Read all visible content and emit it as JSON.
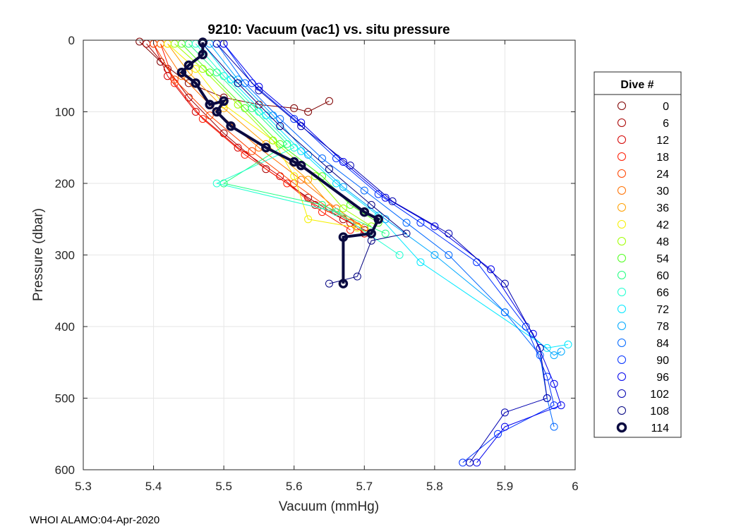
{
  "chart_data": {
    "type": "line",
    "title": "9210: Vacuum (vac1) vs. situ pressure",
    "xlabel": "Vacuum (mmHg)",
    "ylabel": "Pressure (dbar)",
    "xlim": [
      5.3,
      6.0
    ],
    "ylim": [
      0,
      600
    ],
    "y_reversed": true,
    "grid": true,
    "xticks": [
      "5.3",
      "5.4",
      "5.5",
      "5.6",
      "5.7",
      "5.8",
      "5.9",
      "6"
    ],
    "yticks": [
      "0",
      "100",
      "200",
      "300",
      "400",
      "500",
      "600"
    ],
    "legend": {
      "title": "Dive #",
      "placement": "outside-right",
      "entries": [
        "0",
        "6",
        "12",
        "18",
        "24",
        "30",
        "36",
        "42",
        "48",
        "54",
        "60",
        "66",
        "72",
        "78",
        "84",
        "90",
        "96",
        "102",
        "108",
        "114"
      ]
    },
    "series": [
      {
        "name": "0",
        "color": "#7f0000",
        "x": [
          5.38,
          5.41,
          5.45,
          5.5,
          5.55,
          5.6,
          5.62,
          5.65
        ],
        "y": [
          2,
          30,
          60,
          80,
          90,
          95,
          100,
          85
        ]
      },
      {
        "name": "6",
        "color": "#a80000",
        "x": [
          5.39,
          5.42,
          5.45,
          5.5,
          5.56,
          5.62,
          5.67,
          5.7
        ],
        "y": [
          5,
          40,
          80,
          130,
          180,
          220,
          250,
          265
        ]
      },
      {
        "name": "12",
        "color": "#d40000",
        "x": [
          5.4,
          5.42,
          5.46,
          5.52,
          5.58,
          5.63,
          5.68,
          5.7
        ],
        "y": [
          5,
          50,
          100,
          150,
          190,
          230,
          255,
          270
        ]
      },
      {
        "name": "18",
        "color": "#ff1a00",
        "x": [
          5.41,
          5.43,
          5.47,
          5.53,
          5.59,
          5.64,
          5.68
        ],
        "y": [
          5,
          60,
          110,
          160,
          200,
          240,
          265
        ]
      },
      {
        "name": "24",
        "color": "#ff4400",
        "x": [
          5.4,
          5.43,
          5.48,
          5.54,
          5.6,
          5.65,
          5.69
        ],
        "y": [
          5,
          55,
          105,
          155,
          200,
          235,
          260
        ]
      },
      {
        "name": "30",
        "color": "#ff7000",
        "x": [
          5.41,
          5.44,
          5.49,
          5.55,
          5.61,
          5.66,
          5.7
        ],
        "y": [
          5,
          50,
          100,
          150,
          195,
          235,
          262
        ]
      },
      {
        "name": "36",
        "color": "#ffa000",
        "x": [
          5.42,
          5.45,
          5.5,
          5.56,
          5.62,
          5.66,
          5.7
        ],
        "y": [
          5,
          45,
          95,
          145,
          195,
          240,
          262
        ]
      },
      {
        "name": "42",
        "color": "#f5f000",
        "x": [
          5.42,
          5.46,
          5.5,
          5.57,
          5.6,
          5.62,
          5.69
        ],
        "y": [
          5,
          40,
          90,
          140,
          190,
          250,
          262
        ]
      },
      {
        "name": "48",
        "color": "#a0ff00",
        "x": [
          5.43,
          5.47,
          5.52,
          5.57,
          5.63,
          5.67,
          5.71
        ],
        "y": [
          5,
          40,
          90,
          140,
          190,
          235,
          260
        ]
      },
      {
        "name": "54",
        "color": "#50ff20",
        "x": [
          5.44,
          5.48,
          5.53,
          5.58,
          5.64,
          5.68,
          5.72
        ],
        "y": [
          5,
          45,
          95,
          145,
          190,
          230,
          255
        ]
      },
      {
        "name": "60",
        "color": "#20ff80",
        "x": [
          5.45,
          5.49,
          5.54,
          5.59,
          5.5,
          5.64,
          5.73
        ],
        "y": [
          5,
          45,
          95,
          145,
          200,
          230,
          270
        ]
      },
      {
        "name": "66",
        "color": "#20ffd0",
        "x": [
          5.46,
          5.5,
          5.55,
          5.6,
          5.49,
          5.66,
          5.75
        ],
        "y": [
          5,
          50,
          100,
          150,
          200,
          240,
          300
        ]
      },
      {
        "name": "72",
        "color": "#00e8ff",
        "x": [
          5.47,
          5.51,
          5.56,
          5.61,
          5.66,
          5.72,
          5.78,
          5.96,
          5.99
        ],
        "y": [
          5,
          55,
          105,
          155,
          200,
          245,
          310,
          430,
          425
        ]
      },
      {
        "name": "78",
        "color": "#00a8ff",
        "x": [
          5.48,
          5.52,
          5.57,
          5.62,
          5.67,
          5.73,
          5.8,
          5.9,
          5.97,
          5.98
        ],
        "y": [
          5,
          55,
          105,
          160,
          205,
          250,
          300,
          380,
          440,
          435
        ]
      },
      {
        "name": "84",
        "color": "#0068ff",
        "x": [
          5.49,
          5.53,
          5.58,
          5.64,
          5.7,
          5.76,
          5.82,
          5.9,
          5.95,
          5.96,
          5.97
        ],
        "y": [
          5,
          60,
          110,
          165,
          210,
          255,
          300,
          380,
          440,
          500,
          540
        ]
      },
      {
        "name": "90",
        "color": "#0030ff",
        "x": [
          5.5,
          5.54,
          5.6,
          5.66,
          5.72,
          5.78,
          5.86,
          5.93,
          5.96,
          5.97,
          5.89,
          5.84
        ],
        "y": [
          5,
          60,
          110,
          165,
          215,
          255,
          310,
          400,
          470,
          510,
          550,
          590
        ]
      },
      {
        "name": "96",
        "color": "#0000ee",
        "x": [
          5.5,
          5.55,
          5.61,
          5.67,
          5.73,
          5.8,
          5.88,
          5.94,
          5.97,
          5.98,
          5.9,
          5.86
        ],
        "y": [
          5,
          65,
          115,
          170,
          220,
          260,
          320,
          410,
          480,
          510,
          540,
          590
        ]
      },
      {
        "name": "102",
        "color": "#0000b0",
        "x": [
          5.49,
          5.55,
          5.61,
          5.68,
          5.74,
          5.82,
          5.9,
          5.95,
          5.96,
          5.9,
          5.85
        ],
        "y": [
          5,
          70,
          120,
          175,
          225,
          270,
          340,
          430,
          500,
          520,
          590
        ]
      },
      {
        "name": "108",
        "color": "#000080",
        "x": [
          5.47,
          5.52,
          5.58,
          5.65,
          5.71,
          5.76,
          5.71,
          5.69,
          5.65
        ],
        "y": [
          5,
          60,
          120,
          180,
          230,
          270,
          280,
          330,
          340
        ]
      },
      {
        "name": "114",
        "color": "#0a0a40",
        "highlight": true,
        "x": [
          5.47,
          5.47,
          5.45,
          5.44,
          5.46,
          5.48,
          5.5,
          5.49,
          5.51,
          5.56,
          5.6,
          5.61,
          5.7,
          5.72,
          5.71,
          5.67,
          5.67
        ],
        "y": [
          3,
          20,
          35,
          45,
          60,
          90,
          85,
          100,
          120,
          150,
          170,
          175,
          240,
          250,
          270,
          275,
          340
        ]
      }
    ]
  },
  "footer": {
    "source": "WHOI ALAMO:04-Apr-2020"
  }
}
